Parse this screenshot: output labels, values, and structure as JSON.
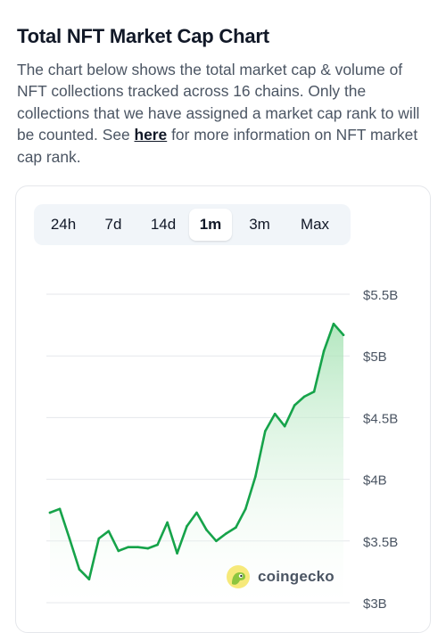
{
  "header": {
    "title": "Total NFT Market Cap Chart",
    "description_before_link": "The chart below shows the total market cap & volume of NFT collections tracked across 16 chains. Only the collections that we have assigned a market cap rank to will be counted. See ",
    "link_text": "here",
    "description_after_link": " for more information on NFT market cap rank."
  },
  "range_tabs": {
    "items": [
      "24h",
      "7d",
      "14d",
      "1m",
      "3m",
      "Max"
    ],
    "selected": "1m"
  },
  "watermark": {
    "text": "coingecko"
  },
  "colors": {
    "line": "#16a34a",
    "area_top": "#a7e3b5",
    "grid": "#e5e7eb",
    "axis_text": "#4b5563"
  },
  "chart_data": {
    "type": "area",
    "title": "",
    "xlabel": "",
    "ylabel": "",
    "y_tick_labels": [
      "$3B",
      "$3.5B",
      "$4B",
      "$4.5B",
      "$5B",
      "$5.5B"
    ],
    "y_ticks": [
      3.0,
      3.5,
      4.0,
      4.5,
      5.0,
      5.5
    ],
    "ylim": [
      3.0,
      5.5
    ],
    "grid": true,
    "legend": "none",
    "series": [
      {
        "values": [
          3.73,
          3.76,
          3.52,
          3.27,
          3.19,
          3.52,
          3.58,
          3.42,
          3.45,
          3.45,
          3.44,
          3.47,
          3.65,
          3.4,
          3.62,
          3.73,
          3.59,
          3.5,
          3.56,
          3.61,
          3.76,
          4.02,
          4.39,
          4.53,
          4.43,
          4.6,
          4.67,
          4.71,
          5.04,
          5.26,
          5.17
        ]
      }
    ]
  }
}
